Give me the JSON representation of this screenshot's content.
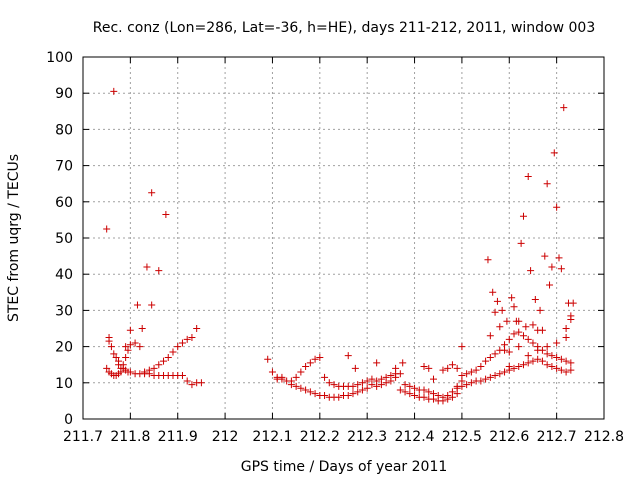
{
  "chart_data": {
    "type": "scatter",
    "title": "Rec. conz (Lon=286, Lat=-36, h=HE), days 211-212, 2011, window 003",
    "xlabel": "GPS time / Days of year 2011",
    "ylabel": "STEC from uqrg / TECUs",
    "xlim": [
      211.7,
      212.8
    ],
    "ylim": [
      0,
      100
    ],
    "xticks": [
      211.7,
      211.8,
      211.9,
      212.0,
      212.1,
      212.2,
      212.3,
      212.4,
      212.5,
      212.6,
      212.7,
      212.8
    ],
    "xtick_labels": [
      "211.7",
      "211.8",
      "211.9",
      "212",
      "212.1",
      "212.2",
      "212.3",
      "212.4",
      "212.5",
      "212.6",
      "212.7",
      "212.8"
    ],
    "yticks": [
      0,
      10,
      20,
      30,
      40,
      50,
      60,
      70,
      80,
      90,
      100
    ],
    "ytick_labels": [
      "0",
      "10",
      "20",
      "30",
      "40",
      "50",
      "60",
      "70",
      "80",
      "90",
      "100"
    ],
    "grid": true,
    "marker": "+",
    "color": "#cc0000",
    "series": [
      {
        "x": [
          211.75,
          211.755,
          211.76,
          211.765,
          211.77,
          211.775,
          211.78,
          211.785,
          211.79,
          211.795,
          211.8,
          211.81,
          211.82,
          211.83,
          211.84,
          211.85,
          211.86,
          211.87,
          211.88,
          211.89,
          211.9,
          211.91,
          211.92,
          211.93,
          211.94,
          211.95
        ],
        "y": [
          52.5,
          22.5,
          20,
          18,
          17,
          15,
          14,
          14,
          13.5,
          13,
          13,
          12.5,
          12.5,
          12.5,
          12.5,
          12,
          12,
          12,
          12,
          12,
          12,
          12,
          10.5,
          9.5,
          10,
          10
        ]
      },
      {
        "x": [
          211.75,
          211.755,
          211.76,
          211.765,
          211.77,
          211.775,
          211.78,
          211.785,
          211.79,
          211.795,
          211.8,
          211.81,
          211.82,
          211.83,
          211.84,
          211.85,
          211.86,
          211.87,
          211.88,
          211.89,
          211.9,
          211.91,
          211.92,
          211.93,
          211.94
        ],
        "y": [
          14,
          13,
          12.5,
          12,
          12,
          12.5,
          13,
          15,
          17,
          19,
          20.5,
          21,
          20,
          13,
          13.5,
          14,
          15,
          16,
          17,
          18.5,
          20,
          21,
          22,
          22.5,
          25
        ]
      },
      {
        "x": [
          211.755,
          211.765,
          211.775,
          211.79,
          211.8,
          211.815,
          211.825,
          211.835,
          211.845,
          211.86,
          211.875
        ],
        "y": [
          21.5,
          90.5,
          16,
          20,
          24.5,
          31.5,
          25,
          42,
          31.5,
          41,
          56.5
        ]
      },
      {
        "x": [
          211.845
        ],
        "y": [
          62.5
        ]
      },
      {
        "x": [
          212.09,
          212.1,
          212.11,
          212.12,
          212.13,
          212.14,
          212.15,
          212.16,
          212.17,
          212.18,
          212.19,
          212.2,
          212.21,
          212.22,
          212.23,
          212.24,
          212.25,
          212.26,
          212.27,
          212.28,
          212.29,
          212.3,
          212.31,
          212.32,
          212.33,
          212.34,
          212.35,
          212.36,
          212.37,
          212.38,
          212.39,
          212.4,
          212.41,
          212.42,
          212.43,
          212.44,
          212.45,
          212.46,
          212.47,
          212.48,
          212.49
        ],
        "y": [
          16.5,
          13,
          11.5,
          11,
          10.5,
          9.5,
          9,
          8.5,
          8,
          7.5,
          7,
          6.5,
          6.5,
          6,
          6,
          6,
          6.5,
          6.5,
          7,
          7.5,
          8,
          8.5,
          9.5,
          10.5,
          11,
          11.5,
          12,
          12.5,
          8,
          7.5,
          7,
          6.5,
          6,
          6,
          5.5,
          5.5,
          5,
          5,
          5.5,
          6,
          7
        ]
      },
      {
        "x": [
          212.11,
          212.12,
          212.14,
          212.15,
          212.16,
          212.17,
          212.18,
          212.19,
          212.2,
          212.21,
          212.22,
          212.23,
          212.24,
          212.25,
          212.26,
          212.27,
          212.28,
          212.29,
          212.3,
          212.31,
          212.32,
          212.33,
          212.34,
          212.35,
          212.36,
          212.37,
          212.38,
          212.39,
          212.4,
          212.41,
          212.42,
          212.43,
          212.44,
          212.45,
          212.46,
          212.47,
          212.48,
          212.49,
          212.5
        ],
        "y": [
          11,
          11.5,
          10.5,
          11.5,
          13,
          14.5,
          15.5,
          16.5,
          17,
          11.5,
          10,
          9.5,
          9,
          9,
          9,
          9,
          9.5,
          10,
          10.5,
          11,
          9,
          9.5,
          10,
          10.5,
          11.5,
          12.5,
          9.5,
          9,
          8.5,
          8,
          8,
          7.5,
          7,
          6.5,
          6,
          6.5,
          7.5,
          9,
          10.5
        ]
      },
      {
        "x": [
          212.26,
          212.275,
          212.32,
          212.36,
          212.375,
          212.42,
          212.43,
          212.44,
          212.46,
          212.47,
          212.48,
          212.49,
          212.5
        ],
        "y": [
          17.5,
          14,
          15.5,
          14,
          15.5,
          14.5,
          14,
          11,
          13.5,
          14,
          15,
          14,
          20
        ]
      },
      {
        "x": [
          212.49,
          212.5,
          212.51,
          212.52,
          212.53,
          212.54,
          212.55,
          212.56,
          212.57,
          212.58,
          212.59,
          212.6,
          212.61,
          212.62,
          212.63,
          212.64,
          212.65,
          212.66,
          212.67,
          212.68,
          212.69,
          212.7,
          212.71,
          212.72,
          212.73
        ],
        "y": [
          8.5,
          9,
          9.5,
          10,
          10.5,
          10.5,
          11,
          11.5,
          12,
          12.5,
          13,
          13.5,
          14,
          14.5,
          15,
          15.5,
          16,
          16.5,
          16,
          15,
          14.5,
          14,
          13.5,
          13,
          13.5
        ]
      },
      {
        "x": [
          212.5,
          212.51,
          212.52,
          212.53,
          212.54,
          212.55,
          212.56,
          212.57,
          212.58,
          212.59,
          212.6,
          212.61,
          212.62,
          212.63,
          212.64,
          212.65,
          212.66,
          212.67,
          212.68,
          212.69,
          212.7,
          212.71,
          212.72,
          212.73
        ],
        "y": [
          12,
          12.5,
          13,
          13.5,
          14.5,
          16,
          17,
          18,
          19,
          20.5,
          22,
          23.5,
          24,
          23,
          22,
          21,
          20,
          19,
          18,
          17.5,
          17,
          16.5,
          16,
          15.5
        ]
      },
      {
        "x": [
          212.555,
          212.565,
          212.575,
          212.585,
          212.595,
          212.605,
          212.615,
          212.625,
          212.635,
          212.645,
          212.655,
          212.665,
          212.675,
          212.685,
          212.695,
          212.705,
          212.715,
          212.725,
          212.735
        ],
        "y": [
          44,
          35,
          32.5,
          30,
          27,
          33.5,
          27,
          48.5,
          25.5,
          41,
          33,
          30,
          45,
          37,
          73.5,
          44.5,
          86,
          32,
          32
        ]
      },
      {
        "x": [
          212.56,
          212.57,
          212.58,
          212.59,
          212.6,
          212.61,
          212.62,
          212.63,
          212.64,
          212.65,
          212.66,
          212.67,
          212.68,
          212.69,
          212.7,
          212.71,
          212.72,
          212.73
        ],
        "y": [
          23,
          29.5,
          25.5,
          19,
          18.5,
          31,
          27,
          56,
          67,
          26,
          24.5,
          24.5,
          65,
          42,
          58.5,
          41.5,
          25,
          28.5
        ]
      },
      {
        "x": [
          212.6,
          212.62,
          212.64,
          212.66,
          212.68,
          212.7,
          212.72,
          212.73
        ],
        "y": [
          14.5,
          20,
          17.5,
          19,
          20,
          21,
          22.5,
          27.5
        ]
      }
    ]
  }
}
